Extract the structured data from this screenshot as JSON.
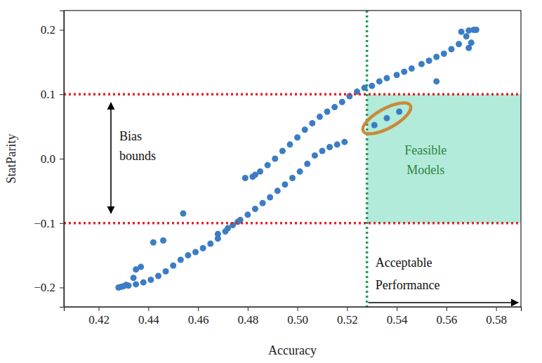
{
  "chart_data": {
    "type": "scatter",
    "x_label": "Accuracy",
    "y_label": "StatParity",
    "color": "#3b7dc4",
    "marker": "circle",
    "x": [
      0.428,
      0.43,
      0.432,
      0.435,
      0.438,
      0.441,
      0.444,
      0.447,
      0.45,
      0.453,
      0.456,
      0.459,
      0.462,
      0.465,
      0.468,
      0.471,
      0.474,
      0.477,
      0.48,
      0.483,
      0.486,
      0.489,
      0.492,
      0.495,
      0.498,
      0.501,
      0.504,
      0.507,
      0.51,
      0.513,
      0.516,
      0.519,
      0.482,
      0.485,
      0.488,
      0.491,
      0.494,
      0.497,
      0.5,
      0.503,
      0.506,
      0.509,
      0.512,
      0.515,
      0.518,
      0.521,
      0.524,
      0.527,
      0.53,
      0.533,
      0.536,
      0.54,
      0.543,
      0.546,
      0.55,
      0.553,
      0.556,
      0.559,
      0.562,
      0.565,
      0.568,
      0.571,
      0.566,
      0.569,
      0.572,
      0.57,
      0.569,
      0.556,
      0.531,
      0.536,
      0.541,
      0.429,
      0.431,
      0.434,
      0.435,
      0.437,
      0.442,
      0.446,
      0.454,
      0.479,
      0.483,
      0.476,
      0.472,
      0.468
    ],
    "y": [
      -0.2,
      -0.198,
      -0.197,
      -0.195,
      -0.192,
      -0.188,
      -0.182,
      -0.175,
      -0.166,
      -0.157,
      -0.15,
      -0.145,
      -0.139,
      -0.132,
      -0.124,
      -0.113,
      -0.103,
      -0.095,
      -0.087,
      -0.078,
      -0.069,
      -0.06,
      -0.05,
      -0.04,
      -0.03,
      -0.02,
      -0.008,
      0.005,
      0.012,
      0.018,
      0.022,
      0.026,
      -0.028,
      -0.02,
      -0.01,
      0.0,
      0.012,
      0.022,
      0.033,
      0.045,
      0.055,
      0.065,
      0.073,
      0.08,
      0.088,
      0.097,
      0.104,
      0.11,
      0.113,
      0.12,
      0.125,
      0.13,
      0.135,
      0.14,
      0.147,
      0.152,
      0.158,
      0.163,
      0.17,
      0.178,
      0.19,
      0.2,
      0.197,
      0.199,
      0.2,
      0.18,
      0.172,
      0.12,
      0.052,
      0.063,
      0.073,
      -0.199,
      -0.196,
      -0.185,
      -0.172,
      -0.168,
      -0.13,
      -0.127,
      -0.085,
      -0.03,
      -0.025,
      -0.098,
      -0.108,
      -0.117
    ],
    "xlim": [
      0.406,
      0.59
    ],
    "ylim": [
      -0.23,
      0.23
    ],
    "xticks": [
      0.42,
      0.44,
      0.46,
      0.48,
      {
        "value": 0.5,
        "label": "0.50"
      },
      0.52,
      0.54,
      0.56,
      0.58
    ],
    "yticks": [
      {
        "value": -0.2,
        "label": "−0.2"
      },
      {
        "value": -0.1,
        "label": "−0.1"
      },
      {
        "value": 0,
        "label": "0.0"
      },
      0.1,
      0.2
    ],
    "annotations": {
      "bias_bounds": {
        "text": "Bias bounds",
        "values": [
          -0.1,
          0.1
        ],
        "color": "#e3242b"
      },
      "acceptable_performance": {
        "text": "Acceptable Performance",
        "value": 0.528,
        "color": "#1fa055"
      },
      "feasible_models": {
        "text": "Feasible Models",
        "color": "#2e8540"
      }
    }
  }
}
